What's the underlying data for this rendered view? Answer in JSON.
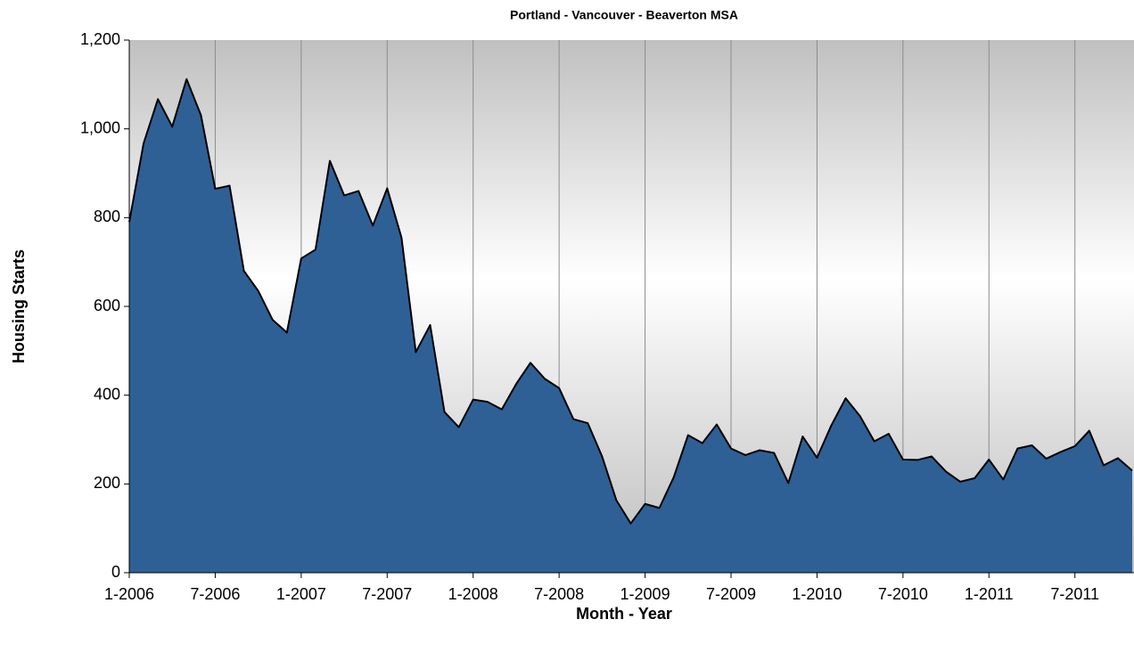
{
  "chart_data": {
    "type": "area",
    "title": "Portland - Vancouver - Beaverton MSA",
    "x_label": "Month - Year",
    "y_label": "Housing Starts",
    "categories": [
      "1-2006",
      null,
      null,
      null,
      null,
      null,
      "7-2006",
      null,
      null,
      null,
      null,
      null,
      "1-2007",
      null,
      null,
      null,
      null,
      null,
      "7-2007",
      null,
      null,
      null,
      null,
      null,
      "1-2008",
      null,
      null,
      null,
      null,
      null,
      "7-2008",
      null,
      null,
      null,
      null,
      null,
      "1-2009",
      null,
      null,
      null,
      null,
      null,
      "7-2009",
      null,
      null,
      null,
      null,
      null,
      "1-2010",
      null,
      null,
      null,
      null,
      null,
      "7-2010",
      null,
      null,
      null,
      null,
      null,
      "1-2011",
      null,
      null,
      null,
      null,
      null,
      "7-2011",
      null,
      null,
      null,
      null
    ],
    "values": [
      790,
      967,
      1067,
      1005,
      1112,
      1031,
      865,
      872,
      680,
      635,
      570,
      541,
      708,
      728,
      928,
      850,
      860,
      782,
      866,
      755,
      497,
      558,
      362,
      328,
      390,
      385,
      368,
      425,
      473,
      437,
      416,
      346,
      337,
      262,
      163,
      111,
      155,
      146,
      215,
      310,
      292,
      334,
      280,
      265,
      276,
      270,
      202,
      307,
      259,
      332,
      393,
      353,
      296,
      313,
      255,
      254,
      262,
      228,
      205,
      213,
      255,
      210,
      280,
      287,
      257,
      272,
      285,
      320,
      242,
      258,
      230
    ],
    "color": "#2e6096",
    "ylim": [
      0,
      1200
    ],
    "yticks": [
      0,
      200,
      400,
      600,
      800,
      {
        "value": 1000,
        "label": "1,000"
      },
      {
        "value": 1200,
        "label": "1,200"
      }
    ],
    "grid": true
  }
}
